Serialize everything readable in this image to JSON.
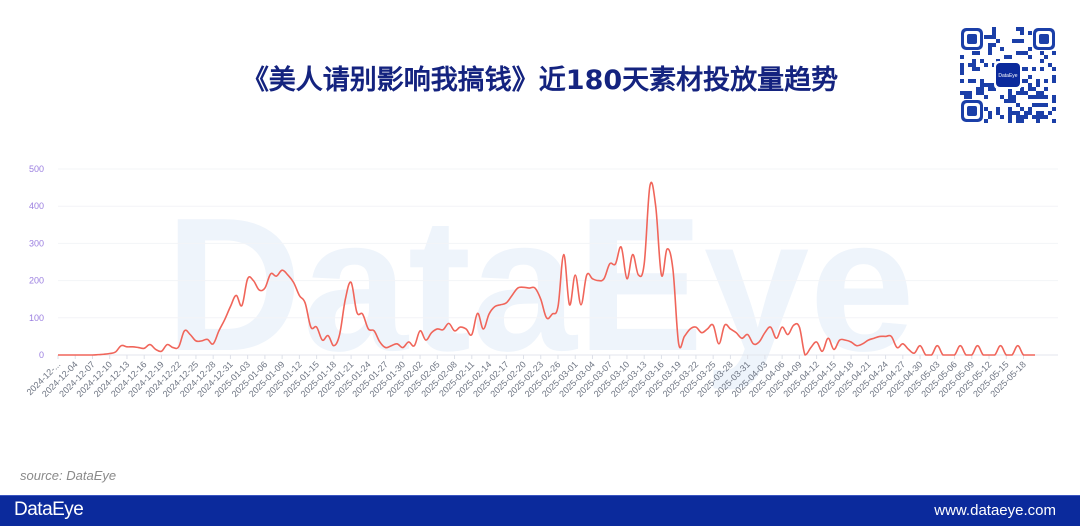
{
  "header": {
    "title": "《美人请别影响我搞钱》近180天素材投放量趋势"
  },
  "qr": {
    "center_label": "DataEye"
  },
  "watermark": "DataEye",
  "source": "source: DataEye",
  "footer": {
    "logo": "DataEye",
    "url": "www.dataeye.com",
    "background": "#0b2a9c"
  },
  "chart_data": {
    "type": "line",
    "title": "",
    "xlabel": "",
    "ylabel": "",
    "ylim": [
      0,
      500
    ],
    "y_ticks": [
      "0",
      "100",
      "200",
      "300",
      "400",
      "500"
    ],
    "grid": true,
    "line_color": "#f0655a",
    "tick_label_color": "#9b7fe0",
    "x_tick_every_days": 3,
    "x_tick_labels": [
      "2024-12-...",
      "2024-12-04",
      "2024-12-07",
      "2024-12-10",
      "2024-12-13",
      "2024-12-16",
      "2024-12-19",
      "2024-12-22",
      "2024-12-25",
      "2024-12-28",
      "2024-12-31",
      "2025-01-03",
      "2025-01-06",
      "2025-01-09",
      "2025-01-12",
      "2025-01-15",
      "2025-01-18",
      "2025-01-21",
      "2025-01-24",
      "2025-01-27",
      "2025-01-30",
      "2025-02-02",
      "2025-02-05",
      "2025-02-08",
      "2025-02-11",
      "2025-02-14",
      "2025-02-17",
      "2025-02-20",
      "2025-02-23",
      "2025-02-26",
      "2025-03-01",
      "2025-03-04",
      "2025-03-07",
      "2025-03-10",
      "2025-03-13",
      "2025-03-16",
      "2025-03-19",
      "2025-03-22",
      "2025-03-25",
      "2025-03-28",
      "2025-03-31",
      "2025-04-03",
      "2025-04-06",
      "2025-04-09",
      "2025-04-12",
      "2025-04-15",
      "2025-04-18",
      "2025-04-21",
      "2025-04-24",
      "2025-04-27",
      "2025-04-30",
      "2025-05-03",
      "2025-05-06",
      "2025-05-09",
      "2025-05-12",
      "2025-05-15",
      "2025-05-18"
    ],
    "values": [
      0,
      0,
      0,
      0,
      0,
      0,
      0,
      1,
      2,
      4,
      8,
      25,
      22,
      22,
      20,
      18,
      28,
      15,
      10,
      28,
      20,
      22,
      65,
      55,
      38,
      38,
      42,
      30,
      65,
      95,
      130,
      160,
      133,
      205,
      200,
      175,
      180,
      218,
      212,
      228,
      215,
      195,
      160,
      140,
      75,
      75,
      40,
      52,
      25,
      55,
      150,
      195,
      115,
      110,
      70,
      65,
      35,
      20,
      25,
      30,
      20,
      35,
      25,
      65,
      40,
      60,
      70,
      68,
      85,
      65,
      75,
      70,
      55,
      112,
      70,
      110,
      130,
      135,
      140,
      160,
      180,
      182,
      180,
      180,
      150,
      100,
      110,
      130,
      270,
      135,
      215,
      135,
      215,
      205,
      200,
      205,
      245,
      245,
      290,
      205,
      270,
      215,
      245,
      455,
      400,
      215,
      285,
      230,
      30,
      50,
      70,
      75,
      60,
      70,
      80,
      30,
      80,
      70,
      60,
      45,
      55,
      30,
      35,
      60,
      75,
      45,
      75,
      55,
      80,
      75,
      0,
      20,
      35,
      10,
      45,
      15,
      40,
      40,
      35,
      25,
      30,
      40,
      45,
      50,
      50,
      50,
      20,
      30,
      15,
      5,
      25,
      0,
      0,
      25,
      0,
      0,
      0,
      25,
      0,
      0,
      25,
      0,
      0,
      0,
      25,
      0,
      0,
      25,
      0,
      0,
      0
    ]
  }
}
